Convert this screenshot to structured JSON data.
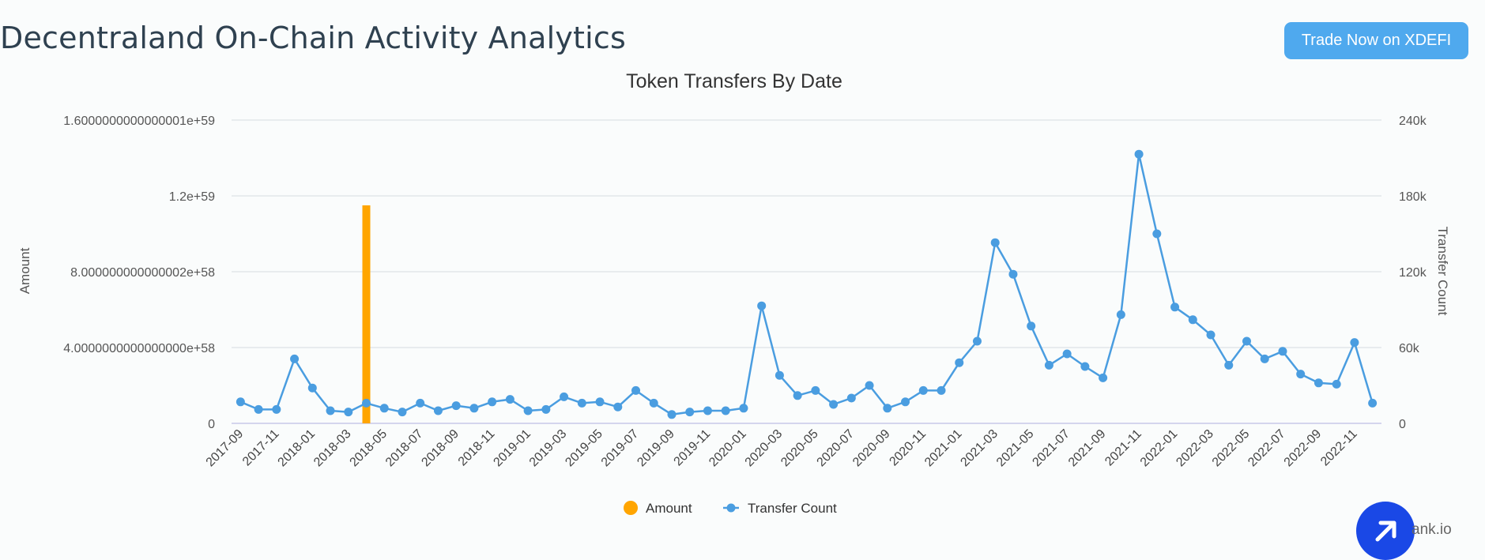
{
  "page": {
    "title": "Decentraland On-Chain Activity Analytics",
    "trade_button_label": "Trade Now on XDEFI",
    "watermark": "ank.io"
  },
  "colors": {
    "amount": "#ffa500",
    "transfer_count": "#4a9de0",
    "trade_button": "#4fa9ee",
    "fab": "#1a48e6"
  },
  "chart_data": {
    "type": "bar",
    "title": "Token Transfers By Date",
    "x_tick_labels": [
      "2017-09",
      "2017-11",
      "2018-01",
      "2018-03",
      "2018-05",
      "2018-07",
      "2018-09",
      "2018-11",
      "2019-01",
      "2019-03",
      "2019-05",
      "2019-07",
      "2019-09",
      "2019-11",
      "2020-01",
      "2020-03",
      "2020-05",
      "2020-07",
      "2020-09",
      "2020-11",
      "2021-01",
      "2021-03",
      "2021-05",
      "2021-07",
      "2021-09",
      "2021-11",
      "2022-01",
      "2022-03",
      "2022-05",
      "2022-07",
      "2022-09",
      "2022-11"
    ],
    "categories": [
      "2017-09",
      "2017-10",
      "2017-11",
      "2017-12",
      "2018-01",
      "2018-02",
      "2018-03",
      "2018-04",
      "2018-05",
      "2018-06",
      "2018-07",
      "2018-08",
      "2018-09",
      "2018-10",
      "2018-11",
      "2018-12",
      "2019-01",
      "2019-02",
      "2019-03",
      "2019-04",
      "2019-05",
      "2019-06",
      "2019-07",
      "2019-08",
      "2019-09",
      "2019-10",
      "2019-11",
      "2019-12",
      "2020-01",
      "2020-02",
      "2020-03",
      "2020-04",
      "2020-05",
      "2020-06",
      "2020-07",
      "2020-08",
      "2020-09",
      "2020-10",
      "2020-11",
      "2020-12",
      "2021-01",
      "2021-02",
      "2021-03",
      "2021-04",
      "2021-05",
      "2021-06",
      "2021-07",
      "2021-08",
      "2021-09",
      "2021-10",
      "2021-11",
      "2021-12",
      "2022-01",
      "2022-02",
      "2022-03",
      "2022-04",
      "2022-05",
      "2022-06",
      "2022-07",
      "2022-08",
      "2022-09",
      "2022-10",
      "2022-11",
      "2022-12"
    ],
    "series": [
      {
        "name": "Amount",
        "type": "bar",
        "axis": "left",
        "values": [
          0,
          0,
          0,
          0,
          0,
          0,
          0,
          1.15e+59,
          0,
          0,
          0,
          0,
          0,
          0,
          0,
          0,
          0,
          0,
          0,
          0,
          0,
          0,
          0,
          0,
          0,
          0,
          0,
          0,
          0,
          0,
          0,
          0,
          0,
          0,
          0,
          0,
          0,
          0,
          0,
          0,
          0,
          0,
          0,
          0,
          0,
          0,
          0,
          0,
          0,
          0,
          0,
          0,
          0,
          0,
          0,
          0,
          0,
          0,
          0,
          0,
          0,
          0,
          0,
          0
        ]
      },
      {
        "name": "Transfer Count",
        "type": "line",
        "axis": "right",
        "values": [
          17000,
          11000,
          11000,
          51000,
          28000,
          10000,
          9000,
          16000,
          12000,
          9000,
          16000,
          10000,
          14000,
          12000,
          17000,
          19000,
          10000,
          11000,
          21000,
          16000,
          17000,
          13000,
          26000,
          16000,
          7000,
          9000,
          10000,
          10000,
          12000,
          93000,
          38000,
          22000,
          26000,
          15000,
          20000,
          30000,
          12000,
          17000,
          26000,
          26000,
          48000,
          65000,
          143000,
          118000,
          77000,
          46000,
          55000,
          45000,
          36000,
          86000,
          213000,
          150000,
          92000,
          82000,
          70000,
          46000,
          65000,
          51000,
          57000,
          39000,
          32000,
          31000,
          64000,
          16000
        ]
      }
    ],
    "y_left": {
      "label": "Amount",
      "ylim": [
        0,
        1.6e+59
      ],
      "tick_labels": [
        "0",
        "4.0000000000000000e+58",
        "8.000000000000002e+58",
        "1.2e+59",
        "1.6000000000000001e+59"
      ]
    },
    "y_right": {
      "label": "Transfer Count",
      "ylim": [
        0,
        240000
      ],
      "tick_labels": [
        "0",
        "60k",
        "120k",
        "180k",
        "240k"
      ]
    },
    "legend": [
      {
        "name": "Amount",
        "marker": "circle"
      },
      {
        "name": "Transfer Count",
        "marker": "line-circle"
      }
    ],
    "legend_position": "bottom",
    "grid": true
  }
}
